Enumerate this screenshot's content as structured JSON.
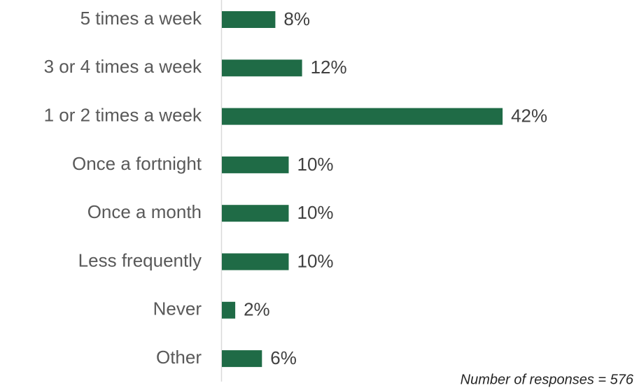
{
  "chart_data": {
    "type": "bar",
    "orientation": "horizontal",
    "categories": [
      "5 times a week",
      "3 or 4 times a week",
      "1 or 2 times a week",
      "Once a fortnight",
      "Once a month",
      "Less frequently",
      "Never",
      "Other"
    ],
    "values": [
      8,
      12,
      42,
      10,
      10,
      10,
      2,
      6
    ],
    "value_labels": [
      "8%",
      "12%",
      "42%",
      "10%",
      "10%",
      "10%",
      "2%",
      "6%"
    ],
    "color": "#1f6b46",
    "note": "Number of responses = 576"
  }
}
